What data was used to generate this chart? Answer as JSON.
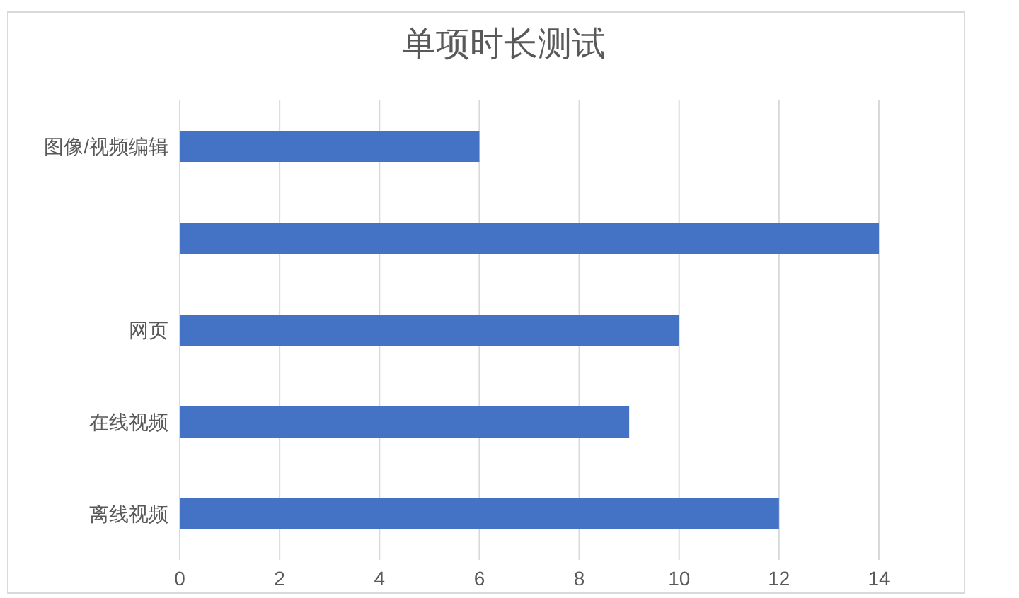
{
  "chart_data": {
    "type": "bar",
    "orientation": "horizontal",
    "title": "单项时长测试",
    "categories": [
      "图像/视频编辑",
      null,
      "网页",
      "在线视频",
      "离线视频"
    ],
    "values": [
      6,
      14,
      10,
      9,
      12
    ],
    "color": "#4472c4",
    "xlim": [
      0,
      14
    ],
    "xticks": [
      0,
      2,
      4,
      6,
      8,
      10,
      12,
      14
    ],
    "grid": "x"
  }
}
